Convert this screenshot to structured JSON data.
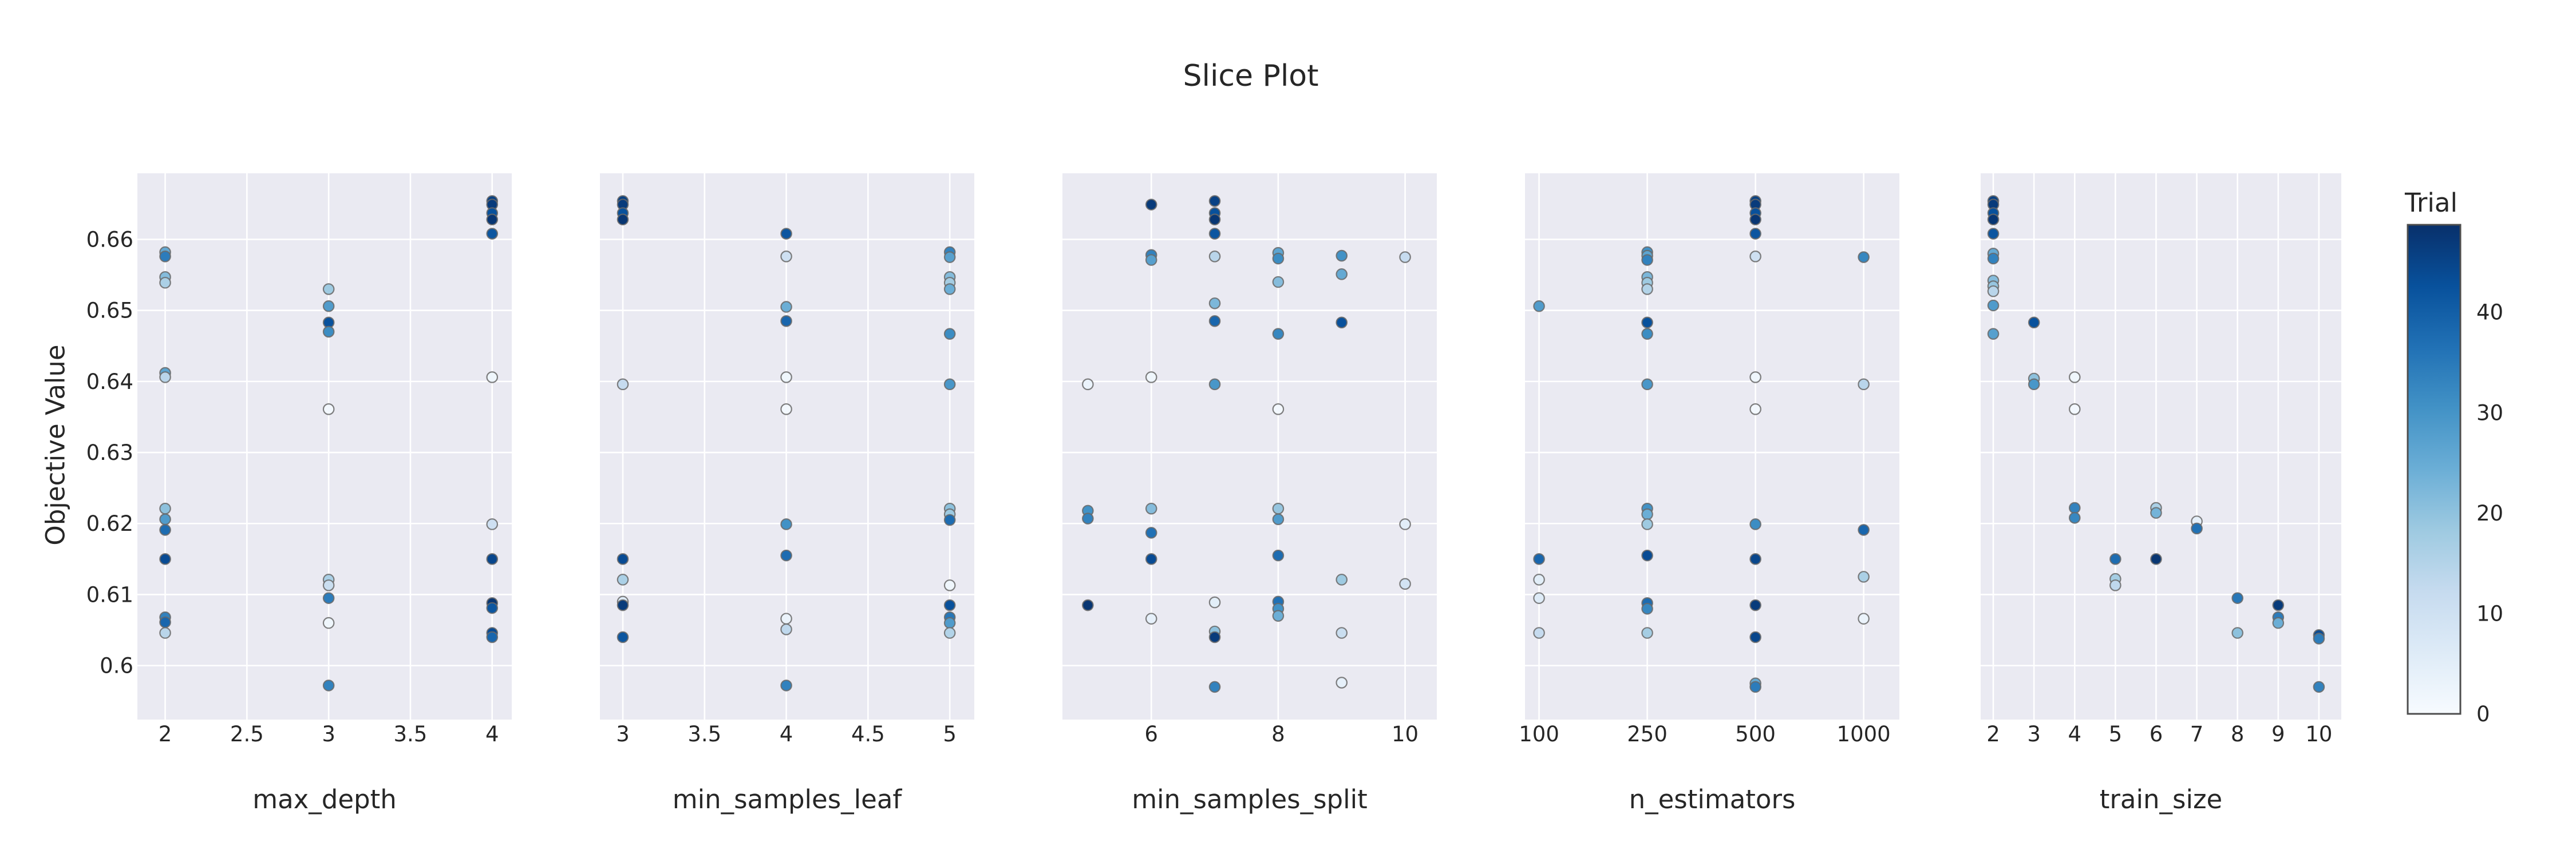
{
  "style": {
    "plot_bg": "#eaeaf2",
    "grid_color": "#ffffff",
    "text_color": "#262626",
    "marker_edge": "rgba(105,105,105,0.85)"
  },
  "chart_data": {
    "type": "scatter",
    "title": "Slice Plot",
    "ylabel": "Objective Value",
    "ylim": [
      0.5924,
      0.6693
    ],
    "yticks": [
      0.6,
      0.61,
      0.62,
      0.63,
      0.64,
      0.65,
      0.66
    ],
    "ytick_labels": [
      "0.6",
      "0.61",
      "0.62",
      "0.63",
      "0.64",
      "0.65",
      "0.66"
    ],
    "grid": true,
    "colorbar": {
      "title": "Trial",
      "ticks": [
        0,
        10,
        20,
        30,
        40
      ],
      "tick_labels": [
        "0",
        "10",
        "20",
        "30",
        "40"
      ],
      "cmin": 0,
      "cmax": 48,
      "colorscale": "Blues",
      "colors": [
        "#f7fbff",
        "#deebf7",
        "#c6dbef",
        "#9ecae1",
        "#6baed6",
        "#4292c6",
        "#2171b5",
        "#08519c",
        "#08306b"
      ]
    },
    "subplots": [
      {
        "xlabel": "max_depth",
        "xlim": [
          1.83,
          4.12
        ],
        "xticks": [
          2,
          2.5,
          3,
          3.5,
          4
        ],
        "xtick_labels": [
          "2",
          "2.5",
          "3",
          "3.5",
          "4"
        ],
        "points": [
          [
            2,
            0.6582,
            25
          ],
          [
            2,
            0.6576,
            34
          ],
          [
            2,
            0.6547,
            21
          ],
          [
            2,
            0.6539,
            16
          ],
          [
            2,
            0.6412,
            26
          ],
          [
            2,
            0.6406,
            14
          ],
          [
            2,
            0.6221,
            20
          ],
          [
            2,
            0.6206,
            28
          ],
          [
            2,
            0.6191,
            37
          ],
          [
            2,
            0.615,
            43
          ],
          [
            2,
            0.6068,
            33
          ],
          [
            2,
            0.6061,
            38
          ],
          [
            2,
            0.6046,
            14
          ],
          [
            3,
            0.653,
            18
          ],
          [
            3,
            0.6506,
            28
          ],
          [
            3,
            0.6483,
            42
          ],
          [
            3,
            0.647,
            31
          ],
          [
            3,
            0.6361,
            1
          ],
          [
            3,
            0.6121,
            16
          ],
          [
            3,
            0.6113,
            11
          ],
          [
            3,
            0.6095,
            34
          ],
          [
            3,
            0.606,
            2
          ],
          [
            3,
            0.5972,
            33
          ],
          [
            4,
            0.6654,
            45
          ],
          [
            4,
            0.6649,
            46
          ],
          [
            4,
            0.6637,
            42
          ],
          [
            4,
            0.6628,
            47
          ],
          [
            4,
            0.6608,
            41
          ],
          [
            4,
            0.6406,
            2
          ],
          [
            4,
            0.6199,
            10
          ],
          [
            4,
            0.615,
            44
          ],
          [
            4,
            0.6088,
            47
          ],
          [
            4,
            0.6081,
            41
          ],
          [
            4,
            0.6046,
            43
          ],
          [
            4,
            0.604,
            38
          ]
        ]
      },
      {
        "xlabel": "min_samples_leaf",
        "xlim": [
          2.86,
          5.15
        ],
        "xticks": [
          3,
          3.5,
          4,
          4.5,
          5
        ],
        "xtick_labels": [
          "3",
          "3.5",
          "4",
          "4.5",
          "5"
        ],
        "points": [
          [
            3,
            0.6654,
            45
          ],
          [
            3,
            0.6649,
            46
          ],
          [
            3,
            0.6637,
            42
          ],
          [
            3,
            0.6628,
            47
          ],
          [
            3,
            0.6396,
            12
          ],
          [
            3,
            0.615,
            43
          ],
          [
            3,
            0.6121,
            16
          ],
          [
            3,
            0.609,
            6
          ],
          [
            3,
            0.6085,
            46
          ],
          [
            3,
            0.604,
            41
          ],
          [
            4,
            0.6608,
            41
          ],
          [
            4,
            0.6576,
            10
          ],
          [
            4,
            0.6505,
            24
          ],
          [
            4,
            0.6485,
            38
          ],
          [
            4,
            0.6406,
            2
          ],
          [
            4,
            0.6361,
            1
          ],
          [
            4,
            0.6199,
            30
          ],
          [
            4,
            0.6155,
            37
          ],
          [
            4,
            0.6066,
            3
          ],
          [
            4,
            0.6051,
            13
          ],
          [
            4,
            0.5972,
            33
          ],
          [
            5,
            0.6582,
            33
          ],
          [
            5,
            0.6575,
            27
          ],
          [
            5,
            0.6547,
            21
          ],
          [
            5,
            0.6539,
            17
          ],
          [
            5,
            0.653,
            24
          ],
          [
            5,
            0.6467,
            31
          ],
          [
            5,
            0.6396,
            29
          ],
          [
            5,
            0.6221,
            20
          ],
          [
            5,
            0.6213,
            18
          ],
          [
            5,
            0.6205,
            37
          ],
          [
            5,
            0.6113,
            2
          ],
          [
            5,
            0.6085,
            42
          ],
          [
            5,
            0.6068,
            35
          ],
          [
            5,
            0.606,
            28
          ],
          [
            5,
            0.6046,
            15
          ]
        ]
      },
      {
        "xlabel": "min_samples_split",
        "xlim": [
          4.6,
          10.5
        ],
        "xticks": [
          6,
          8,
          10
        ],
        "xtick_labels": [
          "6",
          "8",
          "10"
        ],
        "points": [
          [
            5,
            0.6396,
            3
          ],
          [
            5,
            0.6218,
            30
          ],
          [
            5,
            0.6207,
            33
          ],
          [
            5,
            0.6085,
            47
          ],
          [
            6,
            0.6649,
            46
          ],
          [
            6,
            0.6578,
            33
          ],
          [
            6,
            0.6571,
            27
          ],
          [
            6,
            0.6406,
            2
          ],
          [
            6,
            0.6221,
            21
          ],
          [
            6,
            0.6187,
            36
          ],
          [
            6,
            0.615,
            43
          ],
          [
            6,
            0.6066,
            4
          ],
          [
            7,
            0.6654,
            45
          ],
          [
            7,
            0.6637,
            42
          ],
          [
            7,
            0.6628,
            47
          ],
          [
            7,
            0.6608,
            41
          ],
          [
            7,
            0.6576,
            14
          ],
          [
            7,
            0.651,
            22
          ],
          [
            7,
            0.6485,
            38
          ],
          [
            7,
            0.6396,
            29
          ],
          [
            7,
            0.6089,
            5
          ],
          [
            7,
            0.6048,
            20
          ],
          [
            7,
            0.604,
            46
          ],
          [
            7,
            0.597,
            33
          ],
          [
            8,
            0.6581,
            26
          ],
          [
            8,
            0.6573,
            31
          ],
          [
            8,
            0.654,
            21
          ],
          [
            8,
            0.6467,
            32
          ],
          [
            8,
            0.6361,
            1
          ],
          [
            8,
            0.6221,
            19
          ],
          [
            8,
            0.6206,
            28
          ],
          [
            8,
            0.6155,
            37
          ],
          [
            8,
            0.609,
            36
          ],
          [
            8,
            0.608,
            30
          ],
          [
            8,
            0.607,
            24
          ],
          [
            9,
            0.6577,
            30
          ],
          [
            9,
            0.6551,
            25
          ],
          [
            9,
            0.6483,
            42
          ],
          [
            9,
            0.6121,
            18
          ],
          [
            9,
            0.6046,
            11
          ],
          [
            9,
            0.5976,
            4
          ],
          [
            10,
            0.6575,
            12
          ],
          [
            10,
            0.6199,
            5
          ],
          [
            10,
            0.6115,
            9
          ]
        ]
      },
      {
        "xlabel": "n_estimators",
        "categorical": true,
        "categories": [
          "100",
          "250",
          "500",
          "1000"
        ],
        "xlim": [
          -0.13,
          3.33
        ],
        "xticks": [
          0,
          1,
          2,
          3
        ],
        "xtick_labels": [
          "100",
          "250",
          "500",
          "1000"
        ],
        "points": [
          [
            0,
            0.6506,
            28
          ],
          [
            0,
            0.615,
            38
          ],
          [
            0,
            0.6121,
            5
          ],
          [
            0,
            0.6095,
            6
          ],
          [
            0,
            0.6046,
            12
          ],
          [
            1,
            0.6582,
            30
          ],
          [
            1,
            0.6577,
            26
          ],
          [
            1,
            0.6571,
            33
          ],
          [
            1,
            0.6547,
            22
          ],
          [
            1,
            0.6539,
            18
          ],
          [
            1,
            0.653,
            15
          ],
          [
            1,
            0.6483,
            42
          ],
          [
            1,
            0.6467,
            31
          ],
          [
            1,
            0.6396,
            29
          ],
          [
            1,
            0.6221,
            30
          ],
          [
            1,
            0.6213,
            24
          ],
          [
            1,
            0.6199,
            18
          ],
          [
            1,
            0.6155,
            43
          ],
          [
            1,
            0.6088,
            37
          ],
          [
            1,
            0.608,
            32
          ],
          [
            1,
            0.6046,
            17
          ],
          [
            2,
            0.6654,
            45
          ],
          [
            2,
            0.6649,
            46
          ],
          [
            2,
            0.6637,
            42
          ],
          [
            2,
            0.6628,
            47
          ],
          [
            2,
            0.6608,
            41
          ],
          [
            2,
            0.6576,
            10
          ],
          [
            2,
            0.6406,
            2
          ],
          [
            2,
            0.6361,
            1
          ],
          [
            2,
            0.6199,
            31
          ],
          [
            2,
            0.615,
            44
          ],
          [
            2,
            0.6085,
            46
          ],
          [
            2,
            0.604,
            44
          ],
          [
            2,
            0.5975,
            25
          ],
          [
            2,
            0.597,
            34
          ],
          [
            3,
            0.6575,
            32
          ],
          [
            3,
            0.6396,
            14
          ],
          [
            3,
            0.6191,
            38
          ],
          [
            3,
            0.6125,
            16
          ],
          [
            3,
            0.6066,
            3
          ]
        ]
      },
      {
        "xlabel": "train_size",
        "xlim": [
          1.69,
          10.55
        ],
        "xticks": [
          2,
          3,
          4,
          5,
          6,
          7,
          8,
          9,
          10
        ],
        "xtick_labels": [
          "2",
          "3",
          "4",
          "5",
          "6",
          "7",
          "8",
          "9",
          "10"
        ],
        "points": [
          [
            2,
            0.6654,
            45
          ],
          [
            2,
            0.6649,
            46
          ],
          [
            2,
            0.6637,
            42
          ],
          [
            2,
            0.6628,
            47
          ],
          [
            2,
            0.6608,
            41
          ],
          [
            2,
            0.658,
            25
          ],
          [
            2,
            0.6573,
            33
          ],
          [
            2,
            0.6542,
            21
          ],
          [
            2,
            0.6534,
            19
          ],
          [
            2,
            0.6527,
            14
          ],
          [
            2,
            0.6507,
            28
          ],
          [
            2,
            0.6467,
            27
          ],
          [
            3,
            0.6483,
            42
          ],
          [
            3,
            0.6404,
            20
          ],
          [
            3,
            0.6396,
            29
          ],
          [
            4,
            0.6406,
            2
          ],
          [
            4,
            0.6361,
            1
          ],
          [
            4,
            0.6222,
            33
          ],
          [
            4,
            0.6208,
            32
          ],
          [
            5,
            0.615,
            37
          ],
          [
            5,
            0.6122,
            17
          ],
          [
            5,
            0.6113,
            13
          ],
          [
            6,
            0.6222,
            16
          ],
          [
            6,
            0.6215,
            23
          ],
          [
            6,
            0.615,
            47
          ],
          [
            7,
            0.6203,
            4
          ],
          [
            7,
            0.6193,
            36
          ],
          [
            8,
            0.6095,
            35
          ],
          [
            8,
            0.6046,
            20
          ],
          [
            9,
            0.6085,
            46
          ],
          [
            9,
            0.6068,
            34
          ],
          [
            9,
            0.606,
            24
          ],
          [
            10,
            0.6043,
            43
          ],
          [
            10,
            0.6038,
            34
          ],
          [
            10,
            0.597,
            33
          ]
        ]
      }
    ]
  }
}
